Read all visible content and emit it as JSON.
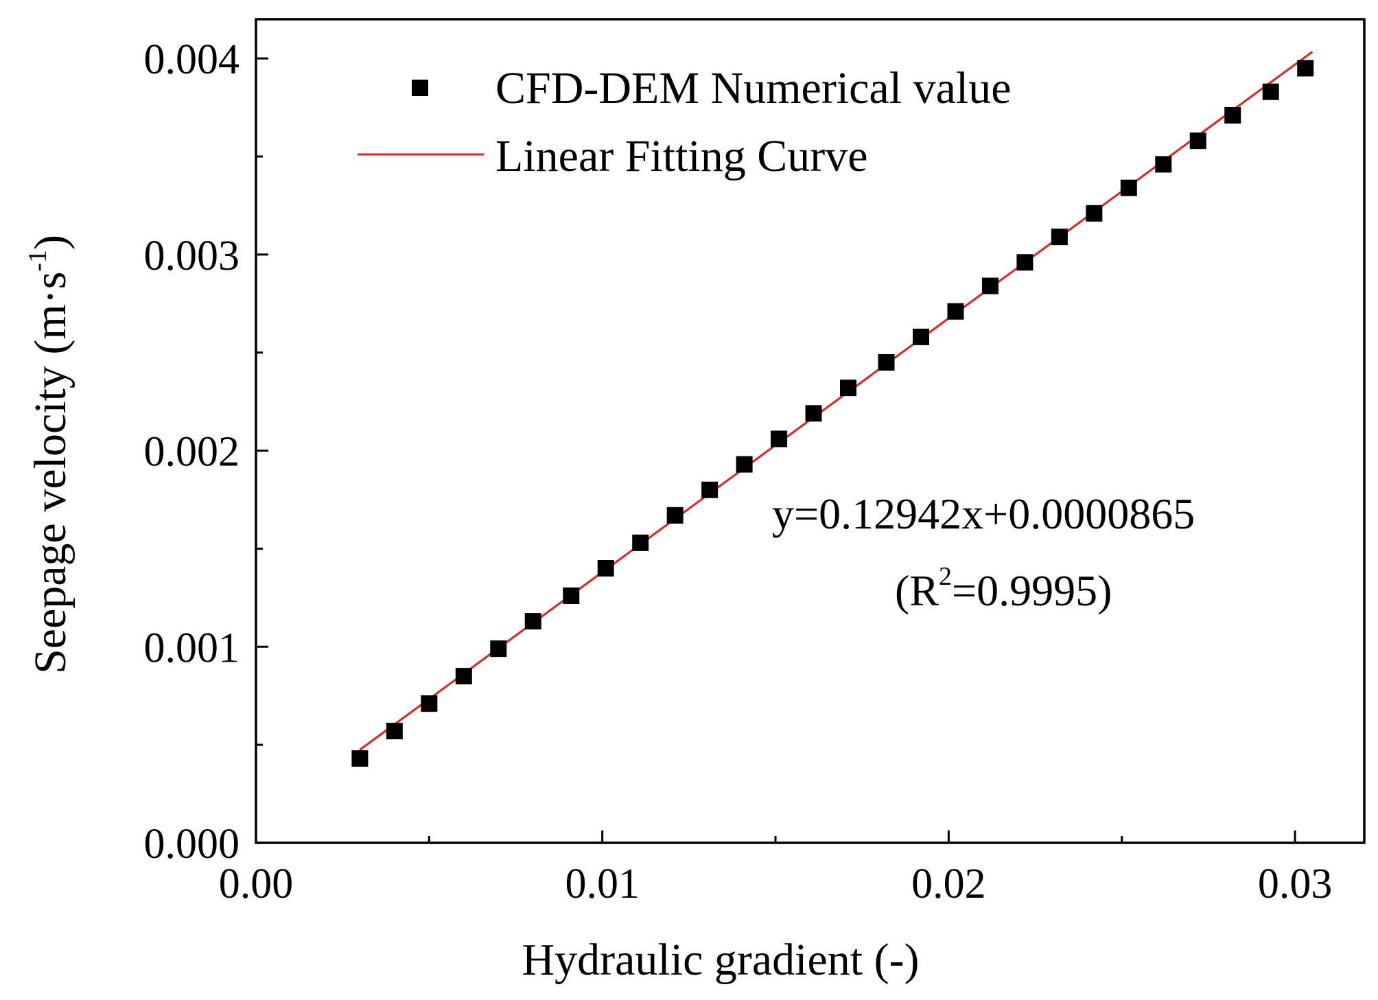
{
  "chart_data": {
    "type": "scatter",
    "title": "",
    "xlabel": "Hydraulic gradient (-)",
    "ylabel": {
      "main": "Seepage velocity (m·s",
      "sup": "-1",
      "close": ")"
    },
    "xlim": [
      0.0,
      0.032
    ],
    "ylim": [
      0.0,
      0.0042
    ],
    "x_ticks": [
      {
        "value": 0.0,
        "label": "0.00"
      },
      {
        "value": 0.01,
        "label": "0.01"
      },
      {
        "value": 0.02,
        "label": "0.02"
      },
      {
        "value": 0.03,
        "label": "0.03"
      }
    ],
    "y_ticks": [
      {
        "value": 0.0,
        "label": "0.000"
      },
      {
        "value": 0.001,
        "label": "0.001"
      },
      {
        "value": 0.002,
        "label": "0.002"
      },
      {
        "value": 0.003,
        "label": "0.003"
      },
      {
        "value": 0.004,
        "label": "0.004"
      }
    ],
    "x_minor_step": 0.005,
    "y_minor_step": 0.0005,
    "series": [
      {
        "name": "CFD-DEM Numerical value",
        "kind": "scatter",
        "color": "#000000",
        "x": [
          0.003,
          0.004,
          0.005,
          0.006,
          0.007,
          0.008,
          0.0091,
          0.0101,
          0.0111,
          0.0121,
          0.0131,
          0.0141,
          0.0151,
          0.0161,
          0.0171,
          0.0182,
          0.0192,
          0.0202,
          0.0212,
          0.0222,
          0.0232,
          0.0242,
          0.0252,
          0.0262,
          0.0272,
          0.0282,
          0.0293,
          0.0303
        ],
        "y": [
          0.00043,
          0.00057,
          0.00071,
          0.00085,
          0.00099,
          0.00113,
          0.00126,
          0.0014,
          0.00153,
          0.00167,
          0.0018,
          0.00193,
          0.00206,
          0.00219,
          0.00232,
          0.00245,
          0.00258,
          0.00271,
          0.00284,
          0.00296,
          0.00309,
          0.00321,
          0.00334,
          0.00346,
          0.00358,
          0.00371,
          0.00383,
          0.00395
        ]
      },
      {
        "name": "Linear Fitting Curve",
        "kind": "line",
        "color": "#e0211f",
        "slope": 0.12942,
        "intercept": 8.65e-05,
        "x_range": [
          0.003,
          0.0305
        ]
      }
    ],
    "legend_position": "top-left",
    "annotation": {
      "equation": "y=0.12942x+0.0000865",
      "r2_open": "(R",
      "r2_sup": "2",
      "r2_rest": "=0.9995)"
    }
  }
}
